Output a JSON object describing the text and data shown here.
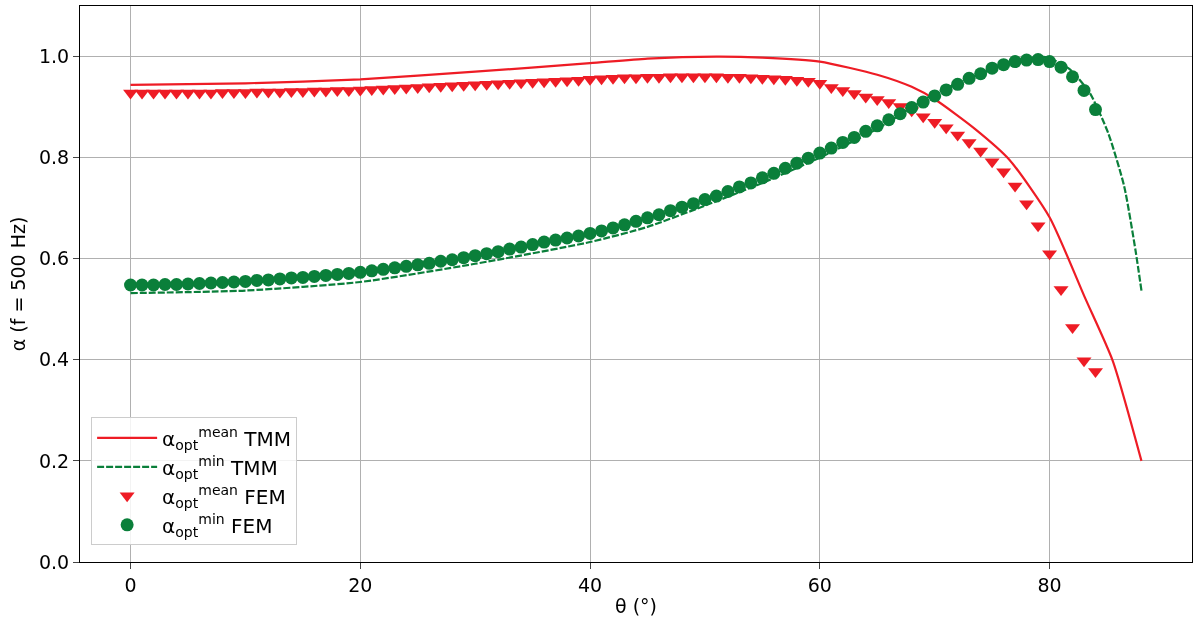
{
  "chart_data": {
    "type": "line",
    "xlabel": "θ (°)",
    "ylabel": "α (f = 500 Hz)",
    "xlim": [
      -4.4,
      92.4
    ],
    "xticks": [
      0,
      20,
      40,
      60,
      80
    ],
    "ylim": [
      0,
      1.1
    ],
    "yticks": [
      {
        "value": 0,
        "label": "0.0"
      },
      {
        "value": 0.2,
        "label": "0.2"
      },
      {
        "value": 0.4,
        "label": "0.4"
      },
      {
        "value": 0.6,
        "label": "0.6"
      },
      {
        "value": 0.8,
        "label": "0.8"
      },
      {
        "value": 1,
        "label": "1.0"
      }
    ],
    "grid": true,
    "legend": "bottom left",
    "series": [
      {
        "name": "α$_{opt}$$^{mean}$ TMM",
        "line_style": "solid",
        "marker": "none",
        "color": "#ee1c25",
        "x": [
          0,
          10,
          20,
          30,
          40,
          45,
          51,
          55,
          60,
          65,
          68,
          70.1,
          73.5,
          76.5,
          80,
          83.1,
          85.5,
          88
        ],
        "values": [
          0.944,
          0.947,
          0.955,
          0.97,
          0.987,
          0.996,
          1.0,
          0.998,
          0.99,
          0.964,
          0.94,
          0.914,
          0.857,
          0.796,
          0.682,
          0.522,
          0.398,
          0.2
        ]
      },
      {
        "name": "α$_{opt}$$^{min}$ TMM",
        "line_style": "dashed",
        "marker": "none",
        "color": "#0a7f3a",
        "x": [
          0,
          10,
          20,
          30,
          40,
          45,
          50,
          55,
          60,
          65,
          70,
          75,
          77,
          79,
          80,
          81.8,
          83.5,
          85.1,
          86.5,
          87.5,
          88
        ],
        "values": [
          0.532,
          0.537,
          0.554,
          0.59,
          0.633,
          0.663,
          0.705,
          0.75,
          0.8,
          0.857,
          0.927,
          0.975,
          0.992,
          1.0,
          0.997,
          0.974,
          0.928,
          0.849,
          0.743,
          0.614,
          0.537
        ]
      },
      {
        "name": "α$_{opt}$$^{mean}$ FEM",
        "type": "scatter",
        "marker": "triangle",
        "color": "#ee1c25",
        "x": [
          0,
          1,
          2,
          3,
          4,
          5,
          6,
          7,
          8,
          9,
          10,
          11,
          12,
          13,
          14,
          15,
          16,
          17,
          18,
          19,
          20,
          21,
          22,
          23,
          24,
          25,
          26,
          27,
          28,
          29,
          30,
          31,
          32,
          33,
          34,
          35,
          36,
          37,
          38,
          39,
          40,
          41,
          42,
          43,
          44,
          45,
          46,
          47,
          48,
          49,
          50,
          51,
          52,
          53,
          54,
          55,
          56,
          57,
          58,
          59,
          60,
          61,
          62,
          63,
          64,
          65,
          66,
          67,
          68,
          69,
          70,
          71,
          72,
          73,
          74,
          75,
          76,
          77,
          78,
          79,
          80,
          81,
          82,
          83,
          84
        ],
        "values": [
          0.928,
          0.928,
          0.928,
          0.928,
          0.928,
          0.928,
          0.928,
          0.928,
          0.929,
          0.929,
          0.929,
          0.93,
          0.93,
          0.93,
          0.931,
          0.931,
          0.932,
          0.932,
          0.933,
          0.933,
          0.934,
          0.935,
          0.936,
          0.937,
          0.938,
          0.939,
          0.94,
          0.941,
          0.942,
          0.943,
          0.944,
          0.945,
          0.946,
          0.947,
          0.948,
          0.949,
          0.95,
          0.951,
          0.952,
          0.953,
          0.955,
          0.956,
          0.957,
          0.958,
          0.958,
          0.959,
          0.959,
          0.96,
          0.96,
          0.96,
          0.96,
          0.96,
          0.959,
          0.959,
          0.958,
          0.957,
          0.956,
          0.955,
          0.953,
          0.951,
          0.947,
          0.939,
          0.933,
          0.927,
          0.92,
          0.915,
          0.909,
          0.901,
          0.893,
          0.881,
          0.87,
          0.859,
          0.845,
          0.83,
          0.813,
          0.792,
          0.772,
          0.744,
          0.709,
          0.665,
          0.61,
          0.539,
          0.464,
          0.398,
          0.377
        ]
      },
      {
        "name": "α$_{opt}$$^{min}$ FEM",
        "type": "scatter",
        "marker": "circle",
        "color": "#0a7f3a",
        "x": [
          0,
          1,
          2,
          3,
          4,
          5,
          6,
          7,
          8,
          9,
          10,
          11,
          12,
          13,
          14,
          15,
          16,
          17,
          18,
          19,
          20,
          21,
          22,
          23,
          24,
          25,
          26,
          27,
          28,
          29,
          30,
          31,
          32,
          33,
          34,
          35,
          36,
          37,
          38,
          39,
          40,
          41,
          42,
          43,
          44,
          45,
          46,
          47,
          48,
          49,
          50,
          51,
          52,
          53,
          54,
          55,
          56,
          57,
          58,
          59,
          60,
          61,
          62,
          63,
          64,
          65,
          66,
          67,
          68,
          69,
          70,
          71,
          72,
          73,
          74,
          75,
          76,
          77,
          78,
          79,
          80,
          81,
          82,
          83,
          84
        ],
        "values": [
          0.548,
          0.548,
          0.548,
          0.549,
          0.549,
          0.55,
          0.551,
          0.552,
          0.553,
          0.554,
          0.555,
          0.557,
          0.558,
          0.56,
          0.562,
          0.563,
          0.565,
          0.567,
          0.569,
          0.571,
          0.573,
          0.576,
          0.579,
          0.582,
          0.585,
          0.588,
          0.591,
          0.595,
          0.598,
          0.602,
          0.606,
          0.61,
          0.614,
          0.619,
          0.623,
          0.628,
          0.633,
          0.637,
          0.641,
          0.645,
          0.65,
          0.655,
          0.661,
          0.667,
          0.674,
          0.681,
          0.687,
          0.695,
          0.702,
          0.709,
          0.717,
          0.724,
          0.733,
          0.742,
          0.75,
          0.76,
          0.769,
          0.779,
          0.789,
          0.799,
          0.809,
          0.819,
          0.83,
          0.84,
          0.852,
          0.863,
          0.875,
          0.887,
          0.899,
          0.91,
          0.922,
          0.934,
          0.945,
          0.957,
          0.966,
          0.977,
          0.984,
          0.99,
          0.993,
          0.994,
          0.99,
          0.979,
          0.96,
          0.933,
          0.895
        ]
      }
    ]
  }
}
